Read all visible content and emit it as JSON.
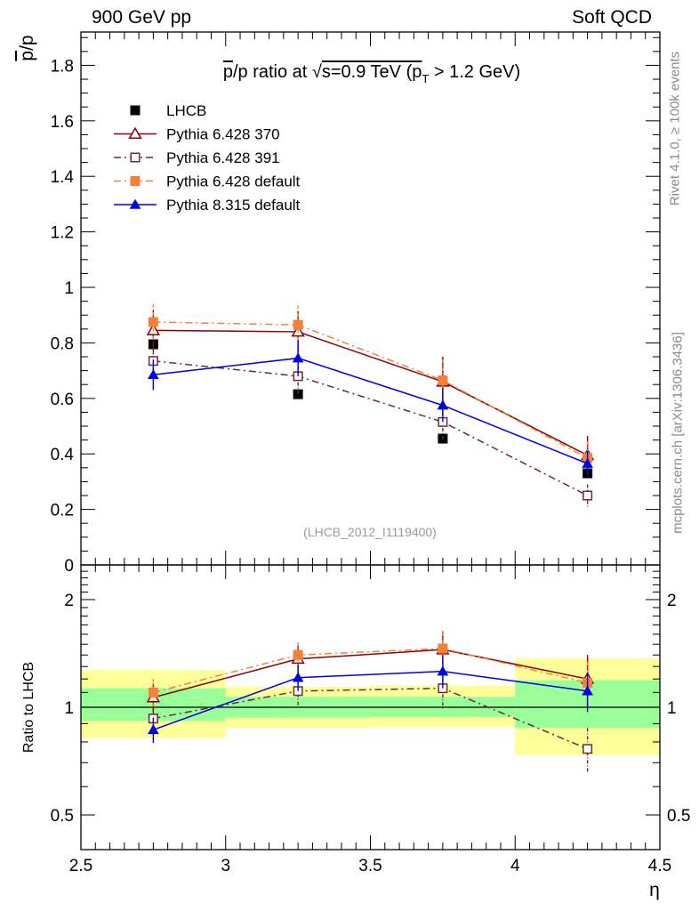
{
  "header": {
    "left": "900 GeV pp",
    "right": "Soft QCD"
  },
  "side_text": {
    "rivet": "Rivet 4.1.0, ≥ 100k events",
    "mcplots": "mcplots.cern.ch [arXiv:1306.3436]"
  },
  "chart_data": [
    {
      "panel": "main",
      "type": "line",
      "title": "p̅/p ratio at √s=0.9 TeV (pT > 1.2 GeV)",
      "title_parts": {
        "pre": "p",
        "mid1": "/p ratio at ",
        "sqrt": "√",
        "mid2": "s=0.9 TeV (p",
        "sub": "T",
        "post": " > 1.2 GeV)"
      },
      "watermark": "(LHCB_2012_I1119400)",
      "xlabel": "η",
      "ylabel": "p̅/p",
      "ylabel_parts": {
        "bar": "p",
        "rest": "/p"
      },
      "xlim": [
        2.5,
        4.5
      ],
      "ylim": [
        0,
        1.92
      ],
      "yticks": [
        0,
        0.2,
        0.4,
        0.6,
        0.8,
        1,
        1.2,
        1.4,
        1.6,
        1.8
      ],
      "ytick_labels": [
        "0",
        "0.2",
        "0.4",
        "0.6",
        "0.8",
        "1",
        "1.2",
        "1.4",
        "1.6",
        "1.8"
      ],
      "x": [
        2.75,
        3.25,
        3.75,
        4.25
      ],
      "series": [
        {
          "name": "LHCB",
          "color": "#000000",
          "marker": "square-filled",
          "line": "none",
          "values": [
            0.795,
            0.615,
            0.455,
            0.33
          ],
          "errors": [
            0.012,
            0.012,
            0.012,
            0.012
          ]
        },
        {
          "name": "Pythia 6.428 370",
          "color": "#8b0000",
          "marker": "triangle-open",
          "line": "solid",
          "values": [
            0.845,
            0.84,
            0.66,
            0.395
          ],
          "errors": [
            0.075,
            0.075,
            0.09,
            0.07
          ]
        },
        {
          "name": "Pythia 6.428 391",
          "color": "#6b2a3a",
          "marker": "square-open",
          "line": "dashdot",
          "values": [
            0.735,
            0.68,
            0.515,
            0.25
          ],
          "errors": [
            0.065,
            0.065,
            0.065,
            0.04
          ]
        },
        {
          "name": "Pythia 6.428 default",
          "color": "#f5803a",
          "marker": "square-filled",
          "line": "dashdot",
          "values": [
            0.875,
            0.865,
            0.665,
            0.385
          ],
          "errors": [
            0.065,
            0.07,
            0.075,
            0.06
          ]
        },
        {
          "name": "Pythia 8.315 default",
          "color": "#0000e0",
          "marker": "triangle-filled",
          "line": "solid",
          "values": [
            0.685,
            0.745,
            0.575,
            0.365
          ],
          "errors": [
            0.055,
            0.065,
            0.06,
            0.045
          ]
        }
      ]
    },
    {
      "panel": "ratio",
      "type": "line",
      "xlabel": "η",
      "ylabel": "Ratio to LHCB",
      "xlim": [
        2.5,
        4.5
      ],
      "ylim": [
        0.4,
        2.5
      ],
      "yscale": "log",
      "yticks": [
        0.5,
        1,
        2
      ],
      "ytick_labels": [
        "0.5",
        "1",
        "2"
      ],
      "xticks": [
        2.5,
        3,
        3.5,
        4,
        4.5
      ],
      "xtick_labels": [
        "2.5",
        "3",
        "3.5",
        "4",
        "4.5"
      ],
      "bands": [
        {
          "x0": 2.5,
          "x1": 3.0,
          "stat": [
            0.915,
            1.13
          ],
          "total": [
            0.82,
            1.27
          ]
        },
        {
          "x0": 3.0,
          "x1": 3.5,
          "stat": [
            0.935,
            1.07
          ],
          "total": [
            0.875,
            1.14
          ]
        },
        {
          "x0": 3.5,
          "x1": 4.0,
          "stat": [
            0.94,
            1.07
          ],
          "total": [
            0.88,
            1.15
          ]
        },
        {
          "x0": 4.0,
          "x1": 4.5,
          "stat": [
            0.875,
            1.19
          ],
          "total": [
            0.735,
            1.37
          ]
        }
      ],
      "x": [
        2.75,
        3.25,
        3.75,
        4.25
      ],
      "series": [
        {
          "name": "Pythia 6.428 370",
          "color": "#8b0000",
          "marker": "triangle-open",
          "line": "solid",
          "values": [
            1.065,
            1.365,
            1.45,
            1.2
          ],
          "errors": [
            0.1,
            0.12,
            0.18,
            0.2
          ]
        },
        {
          "name": "Pythia 6.428 391",
          "color": "#6b2a3a",
          "marker": "square-open",
          "line": "dashdot",
          "values": [
            0.93,
            1.11,
            1.13,
            0.765
          ],
          "errors": [
            0.09,
            0.1,
            0.14,
            0.11
          ]
        },
        {
          "name": "Pythia 6.428 default",
          "color": "#f5803a",
          "marker": "square-filled",
          "line": "dashdot",
          "values": [
            1.1,
            1.4,
            1.46,
            1.17
          ],
          "errors": [
            0.1,
            0.12,
            0.16,
            0.17
          ]
        },
        {
          "name": "Pythia 8.315 default",
          "color": "#0000e0",
          "marker": "triangle-filled",
          "line": "solid",
          "values": [
            0.865,
            1.21,
            1.26,
            1.11
          ],
          "errors": [
            0.07,
            0.1,
            0.13,
            0.14
          ]
        }
      ]
    }
  ]
}
